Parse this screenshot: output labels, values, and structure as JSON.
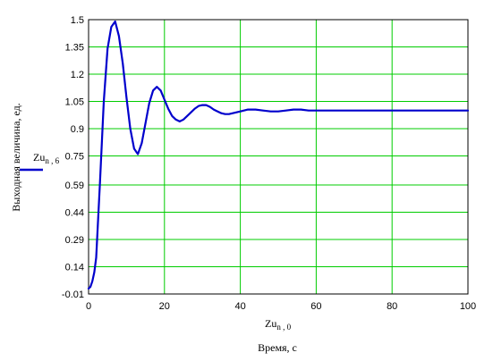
{
  "chart_data": {
    "type": "line",
    "xlim": [
      0,
      100
    ],
    "ylim": [
      -0.01,
      1.5
    ],
    "xticks": [
      0,
      20,
      40,
      60,
      80,
      100
    ],
    "xtick_labels": [
      "0",
      "20",
      "40",
      "60",
      "80",
      "100"
    ],
    "yticks": [
      -0.01,
      0.14,
      0.29,
      0.44,
      0.59,
      0.75,
      0.9,
      1.05,
      1.2,
      1.35,
      1.5
    ],
    "ytick_labels": [
      "-0.01",
      "0.14",
      "0.29",
      "0.44",
      "0.59",
      "0.75",
      "0.9",
      "1.05",
      "1.2",
      "1.35",
      "1.5"
    ],
    "grid": true,
    "grid_color": "#00cc00",
    "line_color": "#0000cc",
    "ylabel": "Выходная величина, ед.",
    "xvar_main": "Zu",
    "xvar_sub": "n , 0",
    "xlabel": "Время, с",
    "series": [
      {
        "name_main": "Zu",
        "name_sub": "n , 6",
        "x": [
          0,
          0.5,
          1,
          1.5,
          2,
          3,
          4,
          5,
          6,
          7,
          8,
          9,
          10,
          11,
          12,
          13,
          14,
          15,
          16,
          17,
          18,
          19,
          20,
          21,
          22,
          23,
          24,
          25,
          26,
          27,
          28,
          29,
          30,
          31,
          32,
          33,
          34,
          35,
          36,
          37,
          38,
          40,
          42,
          44,
          46,
          48,
          50,
          52,
          54,
          56,
          58,
          60,
          70,
          80,
          90,
          100
        ],
        "y": [
          0.02,
          0.03,
          0.06,
          0.11,
          0.19,
          0.6,
          1.05,
          1.34,
          1.46,
          1.49,
          1.41,
          1.26,
          1.07,
          0.9,
          0.79,
          0.76,
          0.82,
          0.93,
          1.04,
          1.11,
          1.13,
          1.11,
          1.06,
          1.01,
          0.97,
          0.95,
          0.94,
          0.95,
          0.97,
          0.99,
          1.01,
          1.025,
          1.03,
          1.03,
          1.02,
          1.005,
          0.995,
          0.985,
          0.98,
          0.98,
          0.985,
          0.995,
          1.005,
          1.005,
          1.0,
          0.995,
          0.995,
          1.0,
          1.005,
          1.005,
          1.0,
          1.0,
          1.0,
          1.0,
          1.0,
          1.0
        ]
      }
    ]
  }
}
